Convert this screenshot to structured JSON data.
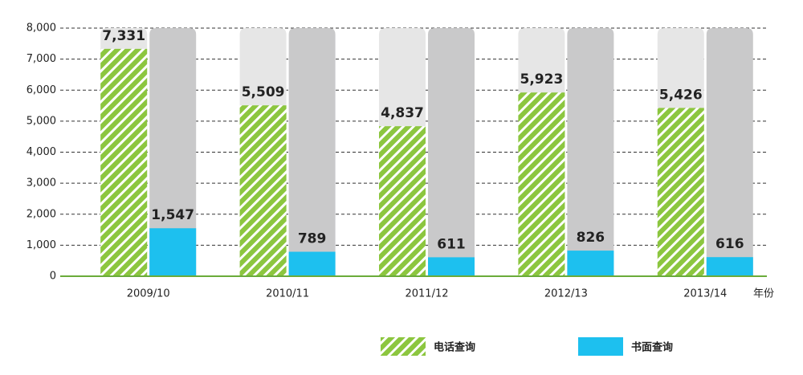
{
  "chart_data": {
    "type": "bar",
    "categories": [
      "2009/10",
      "2010/11",
      "2011/12",
      "2012/13",
      "2013/14"
    ],
    "x_label": "年份",
    "series": [
      {
        "name": "电话查询",
        "color": "#8cc63f",
        "values": [
          7331,
          5509,
          4837,
          5923,
          5426
        ],
        "value_labels": [
          "7,331",
          "5,509",
          "4,837",
          "5,923",
          "5,426"
        ]
      },
      {
        "name": "书面查询",
        "color": "#1dc0ef",
        "values": [
          1547,
          789,
          611,
          826,
          616
        ],
        "value_labels": [
          "1,547",
          "789",
          "611",
          "826",
          "616"
        ]
      }
    ],
    "ylim": [
      0,
      8000
    ],
    "yticks": [
      0,
      {
        "value": 1000,
        "label": "1,000"
      },
      {
        "value": 2000,
        "label": "2,000"
      },
      {
        "value": 3000,
        "label": "3,000"
      },
      {
        "value": 4000,
        "label": "4,000"
      },
      {
        "value": 5000,
        "label": "5,000"
      },
      {
        "value": 6000,
        "label": "6,000"
      },
      {
        "value": 7000,
        "label": "7,000"
      },
      {
        "value": 8000,
        "label": "8,000"
      }
    ],
    "grid": true
  }
}
